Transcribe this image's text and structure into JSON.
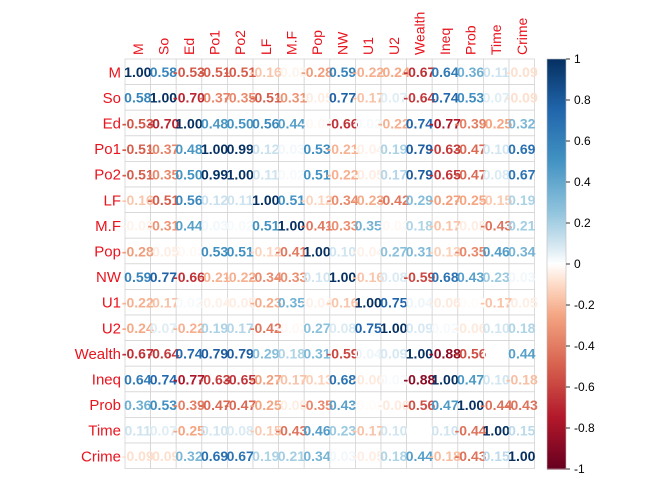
{
  "chart_data": {
    "type": "heatmap",
    "variables": [
      "M",
      "So",
      "Ed",
      "Po1",
      "Po2",
      "LF",
      "M.F",
      "Pop",
      "NW",
      "U1",
      "U2",
      "Wealth",
      "Ineq",
      "Prob",
      "Time",
      "Crime"
    ],
    "matrix": [
      [
        1.0,
        0.58,
        -0.53,
        -0.51,
        -0.51,
        -0.16,
        -0.03,
        -0.28,
        0.59,
        -0.22,
        -0.24,
        -0.67,
        0.64,
        0.36,
        0.11,
        -0.09
      ],
      [
        0.58,
        1.0,
        -0.7,
        -0.37,
        -0.35,
        -0.51,
        -0.31,
        -0.05,
        0.77,
        -0.17,
        0.07,
        -0.64,
        0.74,
        0.53,
        0.07,
        -0.09
      ],
      [
        -0.53,
        -0.7,
        1.0,
        0.48,
        0.5,
        0.56,
        0.44,
        -0.02,
        -0.66,
        0.02,
        -0.22,
        0.74,
        -0.77,
        -0.39,
        -0.25,
        0.32
      ],
      [
        -0.51,
        -0.37,
        0.48,
        1.0,
        0.99,
        0.12,
        0.03,
        0.53,
        -0.21,
        -0.04,
        0.19,
        0.79,
        -0.63,
        -0.47,
        0.1,
        0.69
      ],
      [
        -0.51,
        -0.35,
        0.5,
        0.99,
        1.0,
        0.11,
        0.02,
        0.51,
        -0.22,
        -0.05,
        0.17,
        0.79,
        -0.65,
        -0.47,
        0.08,
        0.67
      ],
      [
        -0.16,
        -0.51,
        0.56,
        0.12,
        0.11,
        1.0,
        0.51,
        -0.12,
        -0.34,
        -0.23,
        -0.42,
        0.29,
        -0.27,
        -0.25,
        -0.15,
        0.19
      ],
      [
        -0.03,
        -0.31,
        0.44,
        0.03,
        0.02,
        0.51,
        1.0,
        -0.41,
        -0.33,
        0.35,
        -0.02,
        0.18,
        -0.17,
        -0.05,
        -0.43,
        0.21
      ],
      [
        -0.28,
        -0.05,
        -0.02,
        0.53,
        0.51,
        -0.12,
        -0.41,
        1.0,
        0.1,
        -0.04,
        0.27,
        0.31,
        -0.13,
        -0.35,
        0.46,
        0.34
      ],
      [
        0.59,
        0.77,
        -0.66,
        -0.21,
        -0.22,
        -0.34,
        -0.33,
        0.1,
        1.0,
        -0.16,
        0.08,
        -0.59,
        0.68,
        0.43,
        0.23,
        0.03
      ],
      [
        -0.22,
        -0.17,
        0.02,
        -0.04,
        -0.05,
        -0.23,
        0.35,
        -0.04,
        -0.16,
        1.0,
        0.75,
        0.04,
        -0.06,
        -0.01,
        -0.17,
        -0.05
      ],
      [
        -0.24,
        0.07,
        -0.22,
        0.19,
        0.17,
        -0.42,
        -0.02,
        0.27,
        0.08,
        0.75,
        1.0,
        0.09,
        0.02,
        -0.06,
        0.1,
        0.18
      ],
      [
        -0.67,
        -0.64,
        0.74,
        0.79,
        0.79,
        0.29,
        0.18,
        0.31,
        -0.59,
        0.04,
        0.09,
        1.0,
        -0.88,
        -0.56,
        0.0,
        0.44
      ],
      [
        0.64,
        0.74,
        -0.77,
        -0.63,
        -0.65,
        -0.27,
        -0.17,
        -0.13,
        0.68,
        -0.06,
        0.02,
        -0.88,
        1.0,
        0.47,
        0.1,
        -0.18
      ],
      [
        0.36,
        0.53,
        -0.39,
        -0.47,
        -0.47,
        -0.25,
        -0.05,
        -0.35,
        0.43,
        -0.01,
        -0.06,
        -0.56,
        0.47,
        1.0,
        -0.44,
        -0.43
      ],
      [
        0.11,
        0.07,
        -0.25,
        0.1,
        0.08,
        -0.15,
        -0.43,
        0.46,
        0.23,
        -0.17,
        0.1,
        0.0,
        0.1,
        -0.44,
        1.0,
        0.15
      ],
      [
        -0.09,
        -0.09,
        0.32,
        0.69,
        0.67,
        0.19,
        0.21,
        0.34,
        0.03,
        -0.05,
        0.18,
        0.44,
        -0.18,
        -0.43,
        0.15,
        1.0
      ]
    ],
    "colorbar": {
      "ticks": [
        "1",
        "0.8",
        "0.6",
        "0.4",
        "0.2",
        "0",
        "-0.2",
        "-0.4",
        "-0.6",
        "-0.8",
        "-1"
      ],
      "range": [
        -1,
        1
      ],
      "colors": {
        "neg": "#67001f",
        "mid": "#ffffff",
        "pos": "#053061"
      }
    },
    "label_color": "#e8141e",
    "number_format": "2 decimals"
  }
}
